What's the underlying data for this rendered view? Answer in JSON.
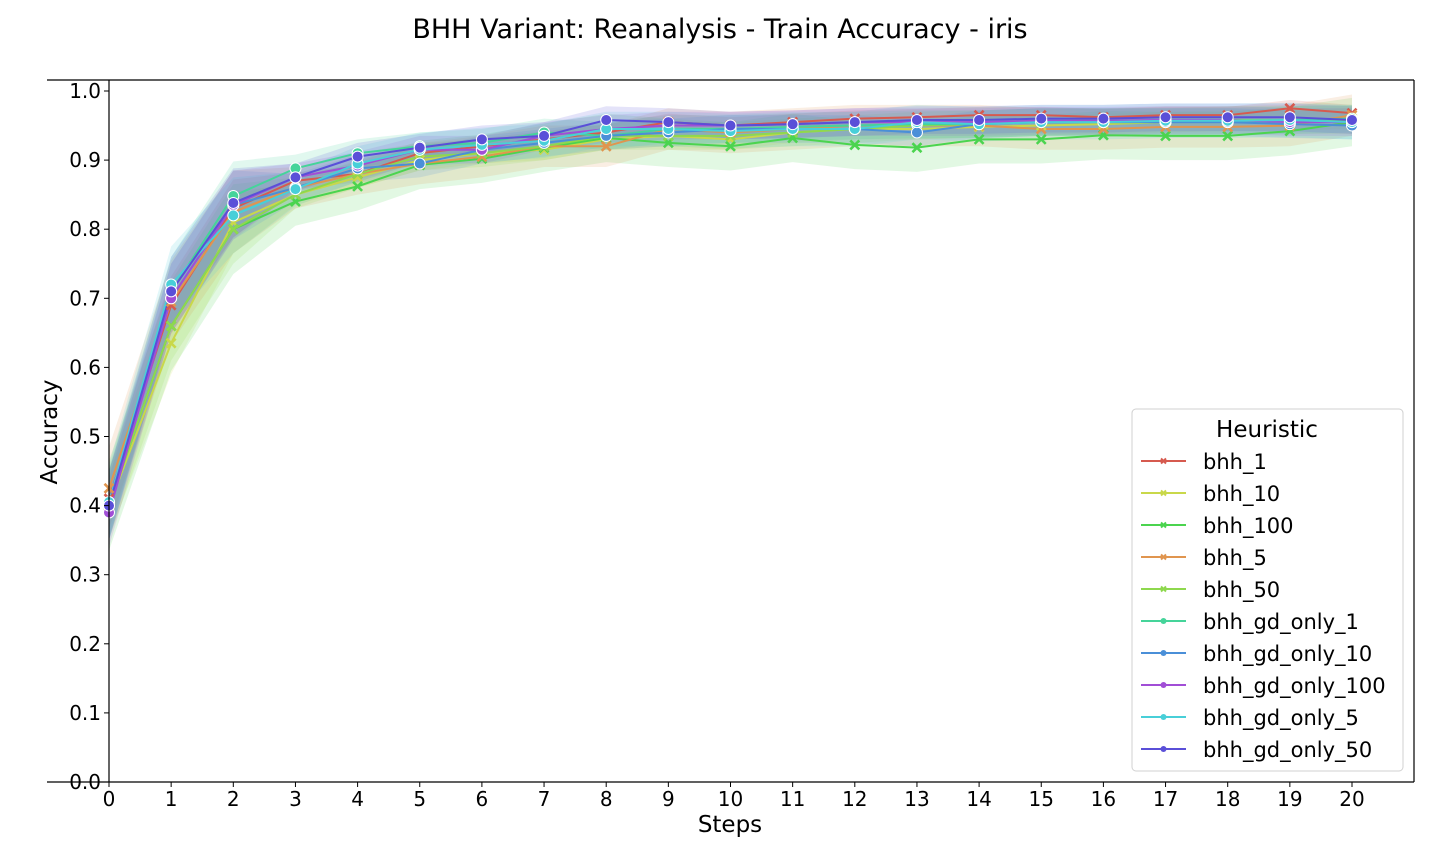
{
  "chart_data": {
    "type": "line",
    "title": "BHH Variant: Reanalysis - Train Accuracy - iris",
    "xlabel": "Steps",
    "ylabel": "Accuracy",
    "xlim": [
      0,
      20
    ],
    "ylim": [
      0,
      1.0
    ],
    "x": [
      0,
      1,
      2,
      3,
      4,
      5,
      6,
      7,
      8,
      9,
      10,
      11,
      12,
      13,
      14,
      15,
      16,
      17,
      18,
      19,
      20
    ],
    "xticks": [
      "0",
      "1",
      "2",
      "3",
      "4",
      "5",
      "6",
      "7",
      "8",
      "9",
      "10",
      "11",
      "12",
      "13",
      "14",
      "15",
      "16",
      "17",
      "18",
      "19",
      "20"
    ],
    "yticks": [
      "0.0",
      "0.1",
      "0.2",
      "0.3",
      "0.4",
      "0.5",
      "0.6",
      "0.7",
      "0.8",
      "0.9",
      "1.0"
    ],
    "grid": false,
    "legend": {
      "title": "Heuristic",
      "placement": "lower-right"
    },
    "series": [
      {
        "name": "bhh_1",
        "color": "#d65a4f",
        "marker": "x",
        "band": 0.012,
        "values": [
          0.41,
          0.69,
          0.83,
          0.87,
          0.88,
          0.91,
          0.92,
          0.93,
          0.94,
          0.955,
          0.95,
          0.955,
          0.96,
          0.962,
          0.965,
          0.965,
          0.962,
          0.965,
          0.965,
          0.975,
          0.968
        ]
      },
      {
        "name": "bhh_10",
        "color": "#c9d84a",
        "marker": "x",
        "band": 0.015,
        "values": [
          0.4,
          0.635,
          0.81,
          0.85,
          0.875,
          0.9,
          0.91,
          0.915,
          0.93,
          0.935,
          0.93,
          0.94,
          0.945,
          0.945,
          0.948,
          0.95,
          0.952,
          0.955,
          0.957,
          0.958,
          0.96
        ]
      },
      {
        "name": "bhh_100",
        "color": "#4bd44f",
        "marker": "x",
        "band": 0.035,
        "values": [
          0.4,
          0.66,
          0.8,
          0.84,
          0.862,
          0.893,
          0.902,
          0.918,
          0.932,
          0.925,
          0.92,
          0.932,
          0.922,
          0.918,
          0.93,
          0.93,
          0.936,
          0.935,
          0.935,
          0.942,
          0.955
        ]
      },
      {
        "name": "bhh_5",
        "color": "#e0954f",
        "marker": "x",
        "band": 0.03,
        "values": [
          0.425,
          0.695,
          0.825,
          0.86,
          0.88,
          0.895,
          0.905,
          0.92,
          0.92,
          0.945,
          0.94,
          0.945,
          0.95,
          0.95,
          0.95,
          0.945,
          0.945,
          0.948,
          0.948,
          0.95,
          0.965
        ]
      },
      {
        "name": "bhh_50",
        "color": "#8ed84e",
        "marker": "x",
        "band": 0.02,
        "values": [
          0.4,
          0.66,
          0.8,
          0.85,
          0.88,
          0.905,
          0.91,
          0.92,
          0.935,
          0.935,
          0.935,
          0.94,
          0.945,
          0.95,
          0.952,
          0.955,
          0.955,
          0.955,
          0.958,
          0.958,
          0.958
        ]
      },
      {
        "name": "bhh_gd_only_1",
        "color": "#45d49a",
        "marker": "o",
        "band": 0.02,
        "values": [
          0.405,
          0.71,
          0.848,
          0.888,
          0.91,
          0.92,
          0.925,
          0.94,
          0.935,
          0.945,
          0.945,
          0.948,
          0.95,
          0.952,
          0.952,
          0.955,
          0.955,
          0.955,
          0.955,
          0.958,
          0.96
        ]
      },
      {
        "name": "bhh_gd_only_10",
        "color": "#4a8fd8",
        "marker": "o",
        "band": 0.02,
        "values": [
          0.4,
          0.7,
          0.835,
          0.86,
          0.888,
          0.895,
          0.915,
          0.925,
          0.935,
          0.94,
          0.945,
          0.945,
          0.945,
          0.94,
          0.952,
          0.955,
          0.955,
          0.955,
          0.955,
          0.952,
          0.95
        ]
      },
      {
        "name": "bhh_gd_only_100",
        "color": "#a14ed6",
        "marker": "o",
        "band": 0.02,
        "values": [
          0.39,
          0.7,
          0.835,
          0.875,
          0.892,
          0.915,
          0.915,
          0.935,
          0.945,
          0.95,
          0.95,
          0.952,
          0.955,
          0.955,
          0.955,
          0.957,
          0.957,
          0.958,
          0.958,
          0.955,
          0.955
        ]
      },
      {
        "name": "bhh_gd_only_5",
        "color": "#48cfd8",
        "marker": "o",
        "band": 0.025,
        "values": [
          0.405,
          0.72,
          0.82,
          0.858,
          0.895,
          0.915,
          0.922,
          0.928,
          0.945,
          0.945,
          0.942,
          0.945,
          0.945,
          0.955,
          0.952,
          0.955,
          0.955,
          0.957,
          0.957,
          0.958,
          0.955
        ]
      },
      {
        "name": "bhh_gd_only_50",
        "color": "#5a4fd8",
        "marker": "o",
        "band": 0.02,
        "values": [
          0.4,
          0.71,
          0.838,
          0.875,
          0.905,
          0.918,
          0.93,
          0.935,
          0.958,
          0.955,
          0.95,
          0.952,
          0.955,
          0.958,
          0.958,
          0.96,
          0.96,
          0.962,
          0.962,
          0.962,
          0.958
        ]
      }
    ]
  }
}
